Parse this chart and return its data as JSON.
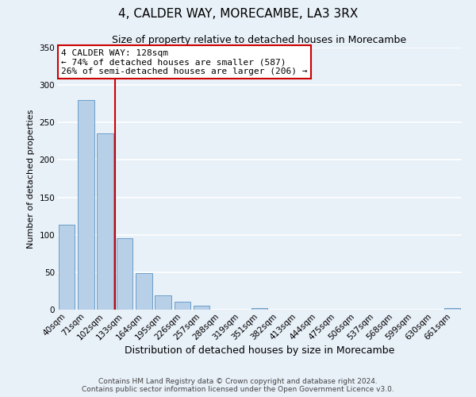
{
  "title": "4, CALDER WAY, MORECAMBE, LA3 3RX",
  "subtitle": "Size of property relative to detached houses in Morecambe",
  "xlabel": "Distribution of detached houses by size in Morecambe",
  "ylabel": "Number of detached properties",
  "footer_line1": "Contains HM Land Registry data © Crown copyright and database right 2024.",
  "footer_line2": "Contains public sector information licensed under the Open Government Licence v3.0.",
  "bin_labels": [
    "40sqm",
    "71sqm",
    "102sqm",
    "133sqm",
    "164sqm",
    "195sqm",
    "226sqm",
    "257sqm",
    "288sqm",
    "319sqm",
    "351sqm",
    "382sqm",
    "413sqm",
    "444sqm",
    "475sqm",
    "506sqm",
    "537sqm",
    "568sqm",
    "599sqm",
    "630sqm",
    "661sqm"
  ],
  "bin_values": [
    113,
    280,
    235,
    95,
    49,
    19,
    11,
    5,
    0,
    0,
    2,
    0,
    0,
    0,
    0,
    0,
    0,
    0,
    0,
    0,
    2
  ],
  "bar_color": "#b8cfe8",
  "bar_edge_color": "#6a9fc8",
  "background_color": "#e8f0f8",
  "grid_color": "#ffffff",
  "annotation_title": "4 CALDER WAY: 128sqm",
  "annotation_line1": "← 74% of detached houses are smaller (587)",
  "annotation_line2": "26% of semi-detached houses are larger (206) →",
  "annotation_box_color": "#ffffff",
  "annotation_box_edge_color": "#cc0000",
  "line_color": "#cc0000",
  "ylim": [
    0,
    350
  ],
  "yticks": [
    0,
    50,
    100,
    150,
    200,
    250,
    300,
    350
  ],
  "title_fontsize": 11,
  "subtitle_fontsize": 9,
  "xlabel_fontsize": 9,
  "ylabel_fontsize": 8,
  "tick_fontsize": 7.5,
  "annotation_fontsize": 8,
  "footer_fontsize": 6.5
}
